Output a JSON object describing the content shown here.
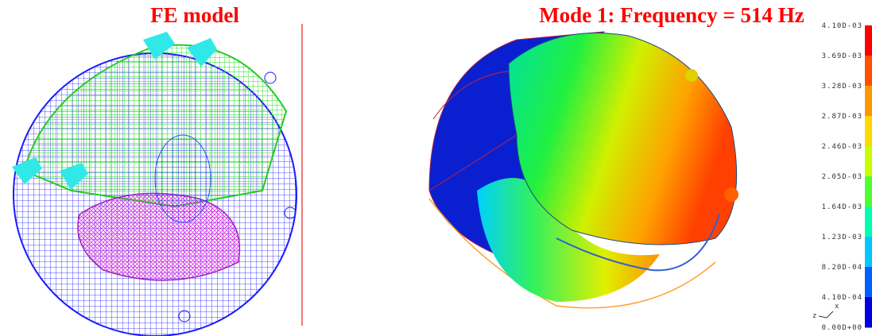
{
  "left_panel": {
    "title": "FE model"
  },
  "right_panel": {
    "title": "Mode 1: Frequency = 514 Hz"
  },
  "legend": {
    "labels": [
      "4.10D-03",
      "3.69D-03",
      "3.28D-03",
      "2.87D-03",
      "2.46D-03",
      "2.05D-03",
      "1.64D-03",
      "1.23D-03",
      "8.20D-04",
      "4.10D-04",
      "0.00D+00"
    ]
  },
  "triad": {
    "labels": [
      "x",
      "z"
    ]
  }
}
